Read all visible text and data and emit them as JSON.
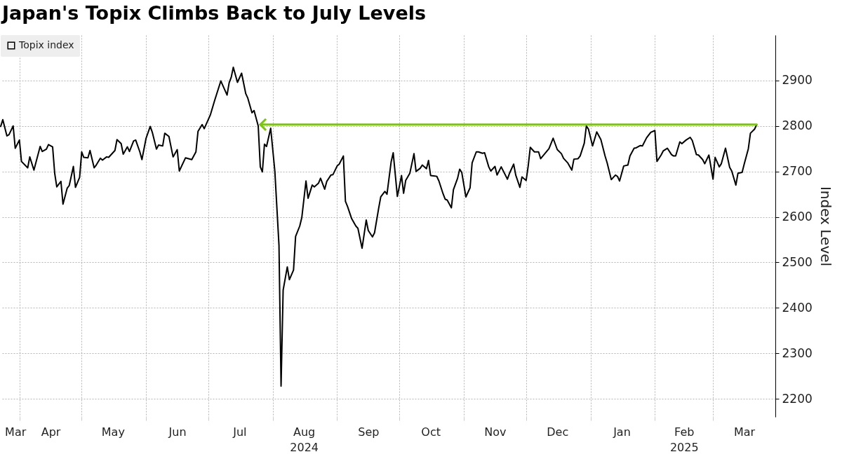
{
  "chart_data": {
    "type": "line",
    "title": "Japan's Topix Climbs Back to July Levels",
    "ylabel": "Index Level",
    "x": [
      "2024-03-23",
      "2024-03-24",
      "2024-03-26",
      "2024-03-27",
      "2024-03-29",
      "2024-03-30",
      "2024-04-01",
      "2024-04-02",
      "2024-04-05",
      "2024-04-06",
      "2024-04-08",
      "2024-04-11",
      "2024-04-12",
      "2024-04-14",
      "2024-04-15",
      "2024-04-17",
      "2024-04-18",
      "2024-04-19",
      "2024-04-21",
      "2024-04-22",
      "2024-04-24",
      "2024-04-25",
      "2024-04-27",
      "2024-04-28",
      "2024-04-30",
      "2024-05-01",
      "2024-05-02",
      "2024-05-04",
      "2024-05-05",
      "2024-05-07",
      "2024-05-08",
      "2024-05-10",
      "2024-05-11",
      "2024-05-13",
      "2024-05-14",
      "2024-05-17",
      "2024-05-18",
      "2024-05-20",
      "2024-05-21",
      "2024-05-23",
      "2024-05-24",
      "2024-05-26",
      "2024-05-27",
      "2024-05-29",
      "2024-05-30",
      "2024-06-01",
      "2024-06-03",
      "2024-06-04",
      "2024-06-06",
      "2024-06-07",
      "2024-06-09",
      "2024-06-10",
      "2024-06-12",
      "2024-06-14",
      "2024-06-16",
      "2024-06-17",
      "2024-06-20",
      "2024-06-23",
      "2024-06-25",
      "2024-06-26",
      "2024-06-28",
      "2024-06-29",
      "2024-07-02",
      "2024-07-04",
      "2024-07-07",
      "2024-07-10",
      "2024-07-11",
      "2024-07-12",
      "2024-07-13",
      "2024-07-15",
      "2024-07-17",
      "2024-07-19",
      "2024-07-20",
      "2024-07-22",
      "2024-07-23",
      "2024-07-25",
      "2024-07-26",
      "2024-07-27",
      "2024-07-28",
      "2024-07-29",
      "2024-07-31",
      "2024-08-02",
      "2024-08-04",
      "2024-08-05",
      "2024-08-06",
      "2024-08-08",
      "2024-08-09",
      "2024-08-11",
      "2024-08-12",
      "2024-08-14",
      "2024-08-15",
      "2024-08-17",
      "2024-08-18",
      "2024-08-20",
      "2024-08-21",
      "2024-08-23",
      "2024-08-24",
      "2024-08-26",
      "2024-08-27",
      "2024-08-29",
      "2024-08-30",
      "2024-09-01",
      "2024-09-02",
      "2024-09-04",
      "2024-09-05",
      "2024-09-06",
      "2024-09-08",
      "2024-09-10",
      "2024-09-11",
      "2024-09-13",
      "2024-09-15",
      "2024-09-16",
      "2024-09-18",
      "2024-09-19",
      "2024-09-21",
      "2024-09-22",
      "2024-09-24",
      "2024-09-25",
      "2024-09-27",
      "2024-09-28",
      "2024-09-30",
      "2024-10-02",
      "2024-10-03",
      "2024-10-04",
      "2024-10-06",
      "2024-10-08",
      "2024-10-09",
      "2024-10-11",
      "2024-10-12",
      "2024-10-14",
      "2024-10-15",
      "2024-10-16",
      "2024-10-18",
      "2024-10-19",
      "2024-10-20",
      "2024-10-22",
      "2024-10-23",
      "2024-10-24",
      "2024-10-26",
      "2024-10-27",
      "2024-10-29",
      "2024-10-30",
      "2024-10-31",
      "2024-11-02",
      "2024-11-04",
      "2024-11-05",
      "2024-11-07",
      "2024-11-08",
      "2024-11-10",
      "2024-11-11",
      "2024-11-13",
      "2024-11-14",
      "2024-11-16",
      "2024-11-17",
      "2024-11-19",
      "2024-11-22",
      "2024-11-23",
      "2024-11-25",
      "2024-11-26",
      "2024-11-28",
      "2024-11-29",
      "2024-12-01",
      "2024-12-02",
      "2024-12-03",
      "2024-12-05",
      "2024-12-07",
      "2024-12-08",
      "2024-12-12",
      "2024-12-14",
      "2024-12-16",
      "2024-12-18",
      "2024-12-19",
      "2024-12-21",
      "2024-12-23",
      "2024-12-24",
      "2024-12-26",
      "2024-12-27",
      "2024-12-29",
      "2024-12-30",
      "2024-12-31",
      "2025-01-02",
      "2025-01-04",
      "2025-01-06",
      "2025-01-08",
      "2025-01-09",
      "2025-01-11",
      "2025-01-13",
      "2025-01-14",
      "2025-01-15",
      "2025-01-17",
      "2025-01-19",
      "2025-01-20",
      "2025-01-22",
      "2025-01-23",
      "2025-01-25",
      "2025-01-26",
      "2025-01-28",
      "2025-01-30",
      "2025-02-01",
      "2025-02-02",
      "2025-02-04",
      "2025-02-05",
      "2025-02-07",
      "2025-02-09",
      "2025-02-10",
      "2025-02-11",
      "2025-02-13",
      "2025-02-14",
      "2025-02-16",
      "2025-02-18",
      "2025-02-19",
      "2025-02-21",
      "2025-02-22",
      "2025-02-24",
      "2025-02-25",
      "2025-02-27",
      "2025-03-01",
      "2025-03-02",
      "2025-03-04",
      "2025-03-05",
      "2025-03-07",
      "2025-03-09",
      "2025-03-10",
      "2025-03-12",
      "2025-03-13",
      "2025-03-15",
      "2025-03-16",
      "2025-03-18",
      "2025-03-19",
      "2025-03-21",
      "2025-03-22"
    ],
    "series": [
      {
        "name": "Topix index",
        "color": "#000000",
        "values": [
          2799,
          2814,
          2778,
          2781,
          2800,
          2751,
          2769,
          2722,
          2708,
          2732,
          2703,
          2755,
          2744,
          2749,
          2759,
          2754,
          2696,
          2666,
          2678,
          2628,
          2663,
          2669,
          2711,
          2665,
          2687,
          2743,
          2731,
          2730,
          2746,
          2708,
          2714,
          2729,
          2725,
          2732,
          2731,
          2746,
          2770,
          2761,
          2738,
          2754,
          2744,
          2767,
          2769,
          2743,
          2726,
          2773,
          2799,
          2786,
          2749,
          2758,
          2756,
          2784,
          2777,
          2732,
          2748,
          2701,
          2730,
          2726,
          2743,
          2788,
          2803,
          2794,
          2825,
          2856,
          2899,
          2868,
          2895,
          2907,
          2929,
          2896,
          2916,
          2871,
          2861,
          2829,
          2834,
          2800,
          2710,
          2699,
          2760,
          2755,
          2795,
          2701,
          2537,
          2228,
          2439,
          2490,
          2462,
          2483,
          2557,
          2580,
          2599,
          2679,
          2641,
          2670,
          2666,
          2674,
          2685,
          2661,
          2678,
          2692,
          2693,
          2712,
          2716,
          2734,
          2634,
          2623,
          2596,
          2580,
          2575,
          2531,
          2593,
          2570,
          2556,
          2565,
          2619,
          2644,
          2656,
          2650,
          2721,
          2741,
          2645,
          2691,
          2652,
          2680,
          2696,
          2739,
          2700,
          2707,
          2714,
          2706,
          2724,
          2691,
          2690,
          2689,
          2679,
          2651,
          2639,
          2637,
          2620,
          2660,
          2685,
          2705,
          2698,
          2644,
          2664,
          2719,
          2743,
          2743,
          2740,
          2741,
          2710,
          2701,
          2711,
          2692,
          2710,
          2683,
          2696,
          2716,
          2692,
          2665,
          2688,
          2680,
          2712,
          2753,
          2743,
          2743,
          2728,
          2750,
          2773,
          2748,
          2739,
          2729,
          2719,
          2703,
          2727,
          2728,
          2734,
          2762,
          2800,
          2793,
          2756,
          2787,
          2770,
          2734,
          2719,
          2682,
          2692,
          2689,
          2679,
          2712,
          2714,
          2734,
          2751,
          2752,
          2757,
          2756,
          2774,
          2786,
          2790,
          2722,
          2736,
          2745,
          2751,
          2737,
          2734,
          2734,
          2765,
          2761,
          2769,
          2775,
          2768,
          2737,
          2736,
          2726,
          2717,
          2736,
          2683,
          2731,
          2710,
          2717,
          2751,
          2709,
          2701,
          2670,
          2696,
          2698,
          2716,
          2750,
          2784,
          2793,
          2803
        ]
      },
      {
        "type": "line",
        "color": "#7cc411",
        "x": [
          "2024-07-26",
          "2025-03-22"
        ],
        "values": [
          2803,
          2803
        ]
      }
    ],
    "xlim": [
      "2024-03-23",
      "2025-03-31"
    ],
    "xticks": [
      {
        "value": "2024-03-30",
        "label": "Mar"
      },
      {
        "value": "2024-04-01",
        "label": null
      },
      {
        "value": "2024-04-16",
        "label": "Apr"
      },
      {
        "value": "2024-05-01",
        "label": null
      },
      {
        "value": "2024-05-16",
        "label": "May"
      },
      {
        "value": "2024-06-01",
        "label": null
      },
      {
        "value": "2024-06-16",
        "label": "Jun"
      },
      {
        "value": "2024-07-01",
        "label": null
      },
      {
        "value": "2024-07-16",
        "label": "Jul"
      },
      {
        "value": "2024-08-01",
        "label": null
      },
      {
        "value": "2024-08-16",
        "label": "Aug\n2024"
      },
      {
        "value": "2024-09-01",
        "label": null
      },
      {
        "value": "2024-09-16",
        "label": "Sep"
      },
      {
        "value": "2024-10-01",
        "label": null
      },
      {
        "value": "2024-10-16",
        "label": "Oct"
      },
      {
        "value": "2024-11-01",
        "label": null
      },
      {
        "value": "2024-11-16",
        "label": "Nov"
      },
      {
        "value": "2024-12-01",
        "label": null
      },
      {
        "value": "2024-12-16",
        "label": "Dec"
      },
      {
        "value": "2025-01-01",
        "label": null
      },
      {
        "value": "2025-01-16",
        "label": "Jan"
      },
      {
        "value": "2025-02-01",
        "label": null
      },
      {
        "value": "2025-02-15",
        "label": "Feb\n2025"
      },
      {
        "value": "2025-03-01",
        "label": null
      },
      {
        "value": "2025-03-16",
        "label": "Mar"
      }
    ],
    "ylim": [
      2160,
      3000
    ],
    "yticks": [
      2200,
      2300,
      2400,
      2500,
      2600,
      2700,
      2800,
      2900
    ],
    "grid": true,
    "legend": "top left"
  }
}
